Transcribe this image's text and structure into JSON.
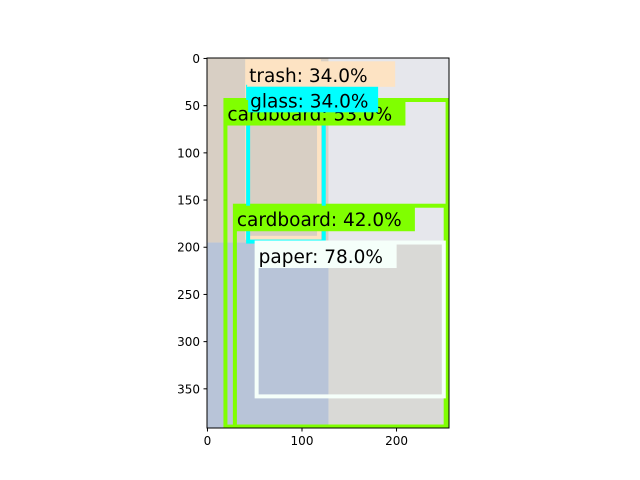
{
  "chart_data": {
    "type": "image-with-detections",
    "title": "",
    "xlabel": "",
    "ylabel": "",
    "xlim": [
      -0.5,
      255.5
    ],
    "ylim": [
      391.5,
      -0.5
    ],
    "xticks": [
      0,
      100,
      200
    ],
    "yticks": [
      0,
      50,
      100,
      150,
      200,
      250,
      300,
      350
    ],
    "image_regions": [
      {
        "name": "top-left-photo",
        "x0": 0,
        "y0": 0,
        "x1": 128,
        "y1": 195,
        "color": "#d8cfc4"
      },
      {
        "name": "top-right-photo",
        "x0": 128,
        "y0": 0,
        "x1": 256,
        "y1": 195,
        "color": "#e6e7ec"
      },
      {
        "name": "bottom-left-photo",
        "x0": 0,
        "y0": 195,
        "x1": 128,
        "y1": 392,
        "color": "#b8c4d8"
      },
      {
        "name": "bottom-right-photo",
        "x0": 128,
        "y0": 195,
        "x1": 256,
        "y1": 392,
        "color": "#d9d9d6"
      }
    ],
    "detections": [
      {
        "label": "trash: 34.0%",
        "color": "#fde3c3",
        "x0": 42,
        "y0": 3,
        "x1": 118,
        "y1": 190,
        "label_width": 148,
        "label_height": 27
      },
      {
        "label": "cardboard: 53.0%",
        "color": "#80ff00",
        "x0": 19,
        "y0": 44,
        "x1": 254,
        "y1": 390,
        "label_width": 180,
        "label_height": 27
      },
      {
        "label": "cardboard: 42.0%",
        "color": "#80ff00",
        "x0": 29,
        "y0": 156,
        "x1": 252,
        "y1": 390,
        "label_width": 180,
        "label_height": 27
      },
      {
        "label": "glass: 34.0%",
        "color": "#00ffff",
        "x0": 43,
        "y0": 30,
        "x1": 123,
        "y1": 194,
        "label_width": 130,
        "label_height": 27
      },
      {
        "label": "paper: 78.0%",
        "color": "#f5fffa",
        "x0": 52,
        "y0": 195,
        "x1": 250,
        "y1": 358,
        "label_width": 140,
        "label_height": 27
      }
    ]
  }
}
